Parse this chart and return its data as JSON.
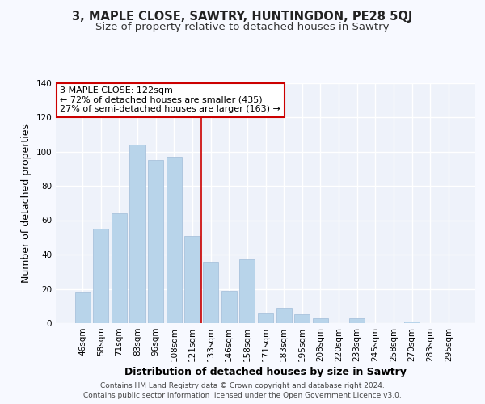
{
  "title": "3, MAPLE CLOSE, SAWTRY, HUNTINGDON, PE28 5QJ",
  "subtitle": "Size of property relative to detached houses in Sawtry",
  "xlabel": "Distribution of detached houses by size in Sawtry",
  "ylabel": "Number of detached properties",
  "bar_labels": [
    "46sqm",
    "58sqm",
    "71sqm",
    "83sqm",
    "96sqm",
    "108sqm",
    "121sqm",
    "133sqm",
    "146sqm",
    "158sqm",
    "171sqm",
    "183sqm",
    "195sqm",
    "208sqm",
    "220sqm",
    "233sqm",
    "245sqm",
    "258sqm",
    "270sqm",
    "283sqm",
    "295sqm"
  ],
  "bar_values": [
    18,
    55,
    64,
    104,
    95,
    97,
    51,
    36,
    19,
    37,
    6,
    9,
    5,
    3,
    0,
    3,
    0,
    0,
    1,
    0,
    0
  ],
  "bar_color": "#b8d4ea",
  "bar_edge_color": "#a0bcd8",
  "highlight_index": 6,
  "ylim": [
    0,
    140
  ],
  "yticks": [
    0,
    20,
    40,
    60,
    80,
    100,
    120,
    140
  ],
  "annotation_title": "3 MAPLE CLOSE: 122sqm",
  "annotation_line1": "← 72% of detached houses are smaller (435)",
  "annotation_line2": "27% of semi-detached houses are larger (163) →",
  "footer1": "Contains HM Land Registry data © Crown copyright and database right 2024.",
  "footer2": "Contains public sector information licensed under the Open Government Licence v3.0.",
  "background_color": "#f7f9ff",
  "plot_bg_color": "#eef2fa",
  "grid_color": "#ffffff",
  "annotation_box_color": "#ffffff",
  "annotation_border_color": "#cc0000",
  "title_fontsize": 10.5,
  "subtitle_fontsize": 9.5,
  "axis_label_fontsize": 9,
  "tick_fontsize": 7.5,
  "annotation_fontsize": 8,
  "footer_fontsize": 6.5
}
